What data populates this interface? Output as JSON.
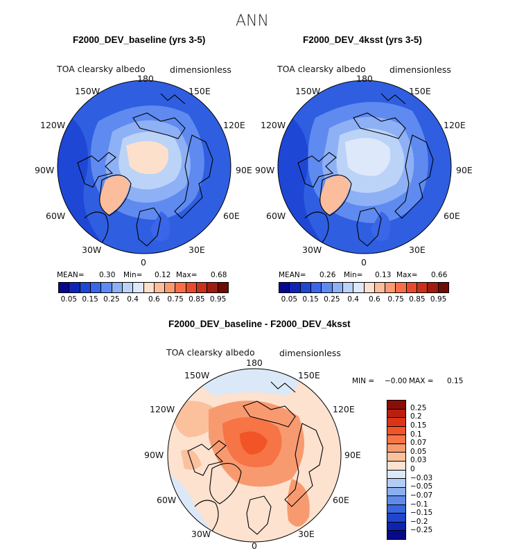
{
  "main_title": "ANN",
  "chart_data": [
    {
      "type": "polar-map",
      "title": "F2000_DEV_baseline (yrs 3-5)",
      "variable": "TOA clearsky albedo",
      "units": "dimensionless",
      "lon_labels": [
        "180",
        "150E",
        "120E",
        "90E",
        "60E",
        "30E",
        "0",
        "30W",
        "60W",
        "90W",
        "120W",
        "150W"
      ],
      "stats": {
        "mean_label": "MEAN=",
        "mean": "0.30",
        "min_label": "Min=",
        "min": "0.12",
        "max_label": "Max=",
        "max": "0.68"
      },
      "colorbar": {
        "levels": [
          "0.05",
          "0.15",
          "0.25",
          "0.4",
          "0.6",
          "0.75",
          "0.85",
          "0.95"
        ],
        "colors": [
          "#08088f",
          "#0f25b8",
          "#1f47d6",
          "#3a66e8",
          "#5f8af0",
          "#8eb0f5",
          "#bcd3f8",
          "#dde9fa",
          "#fde0cc",
          "#fbbd9c",
          "#f99a71",
          "#f5704a",
          "#e84a2b",
          "#c8321c",
          "#9e1d10",
          "#6e0c06"
        ]
      }
    },
    {
      "type": "polar-map",
      "title": "F2000_DEV_4ksst (yrs 3-5)",
      "variable": "TOA clearsky albedo",
      "units": "dimensionless",
      "lon_labels": [
        "180",
        "150E",
        "120E",
        "90E",
        "60E",
        "30E",
        "0",
        "30W",
        "60W",
        "90W",
        "120W",
        "150W"
      ],
      "stats": {
        "mean_label": "MEAN=",
        "mean": "0.26",
        "min_label": "Min=",
        "min": "0.13",
        "max_label": "Max=",
        "max": "0.66"
      },
      "colorbar": {
        "levels": [
          "0.05",
          "0.15",
          "0.25",
          "0.4",
          "0.6",
          "0.75",
          "0.85",
          "0.95"
        ],
        "colors": [
          "#08088f",
          "#0f25b8",
          "#1f47d6",
          "#3a66e8",
          "#5f8af0",
          "#8eb0f5",
          "#bcd3f8",
          "#dde9fa",
          "#fde0cc",
          "#fbbd9c",
          "#f99a71",
          "#f5704a",
          "#e84a2b",
          "#c8321c",
          "#9e1d10",
          "#6e0c06"
        ]
      }
    },
    {
      "type": "polar-map",
      "title": "F2000_DEV_baseline - F2000_DEV_4ksst",
      "variable": "TOA clearsky albedo",
      "units": "dimensionless",
      "lon_labels": [
        "180",
        "150E",
        "120E",
        "90E",
        "60E",
        "30E",
        "0",
        "30W",
        "60W",
        "90W",
        "120W",
        "150W"
      ],
      "stats": {
        "min_label": "MIN =",
        "min": "−0.00",
        "max_label": "MAX =",
        "max": "0.15"
      },
      "colorbar": {
        "levels": [
          "0.25",
          "0.2",
          "0.15",
          "0.1",
          "0.07",
          "0.05",
          "0.03",
          "0",
          "−0.03",
          "−0.05",
          "−0.07",
          "−0.1",
          "−0.15",
          "−0.2",
          "−0.25"
        ],
        "colors": [
          "#8a0e06",
          "#b91f10",
          "#dd3418",
          "#f25427",
          "#f67446",
          "#f89a70",
          "#fbc09c",
          "#fde2cf",
          "#dbe8f7",
          "#b3ccf3",
          "#8aafef",
          "#5f8ae9",
          "#3a66df",
          "#1f45cc",
          "#0c24b0",
          "#050a88"
        ]
      }
    }
  ]
}
